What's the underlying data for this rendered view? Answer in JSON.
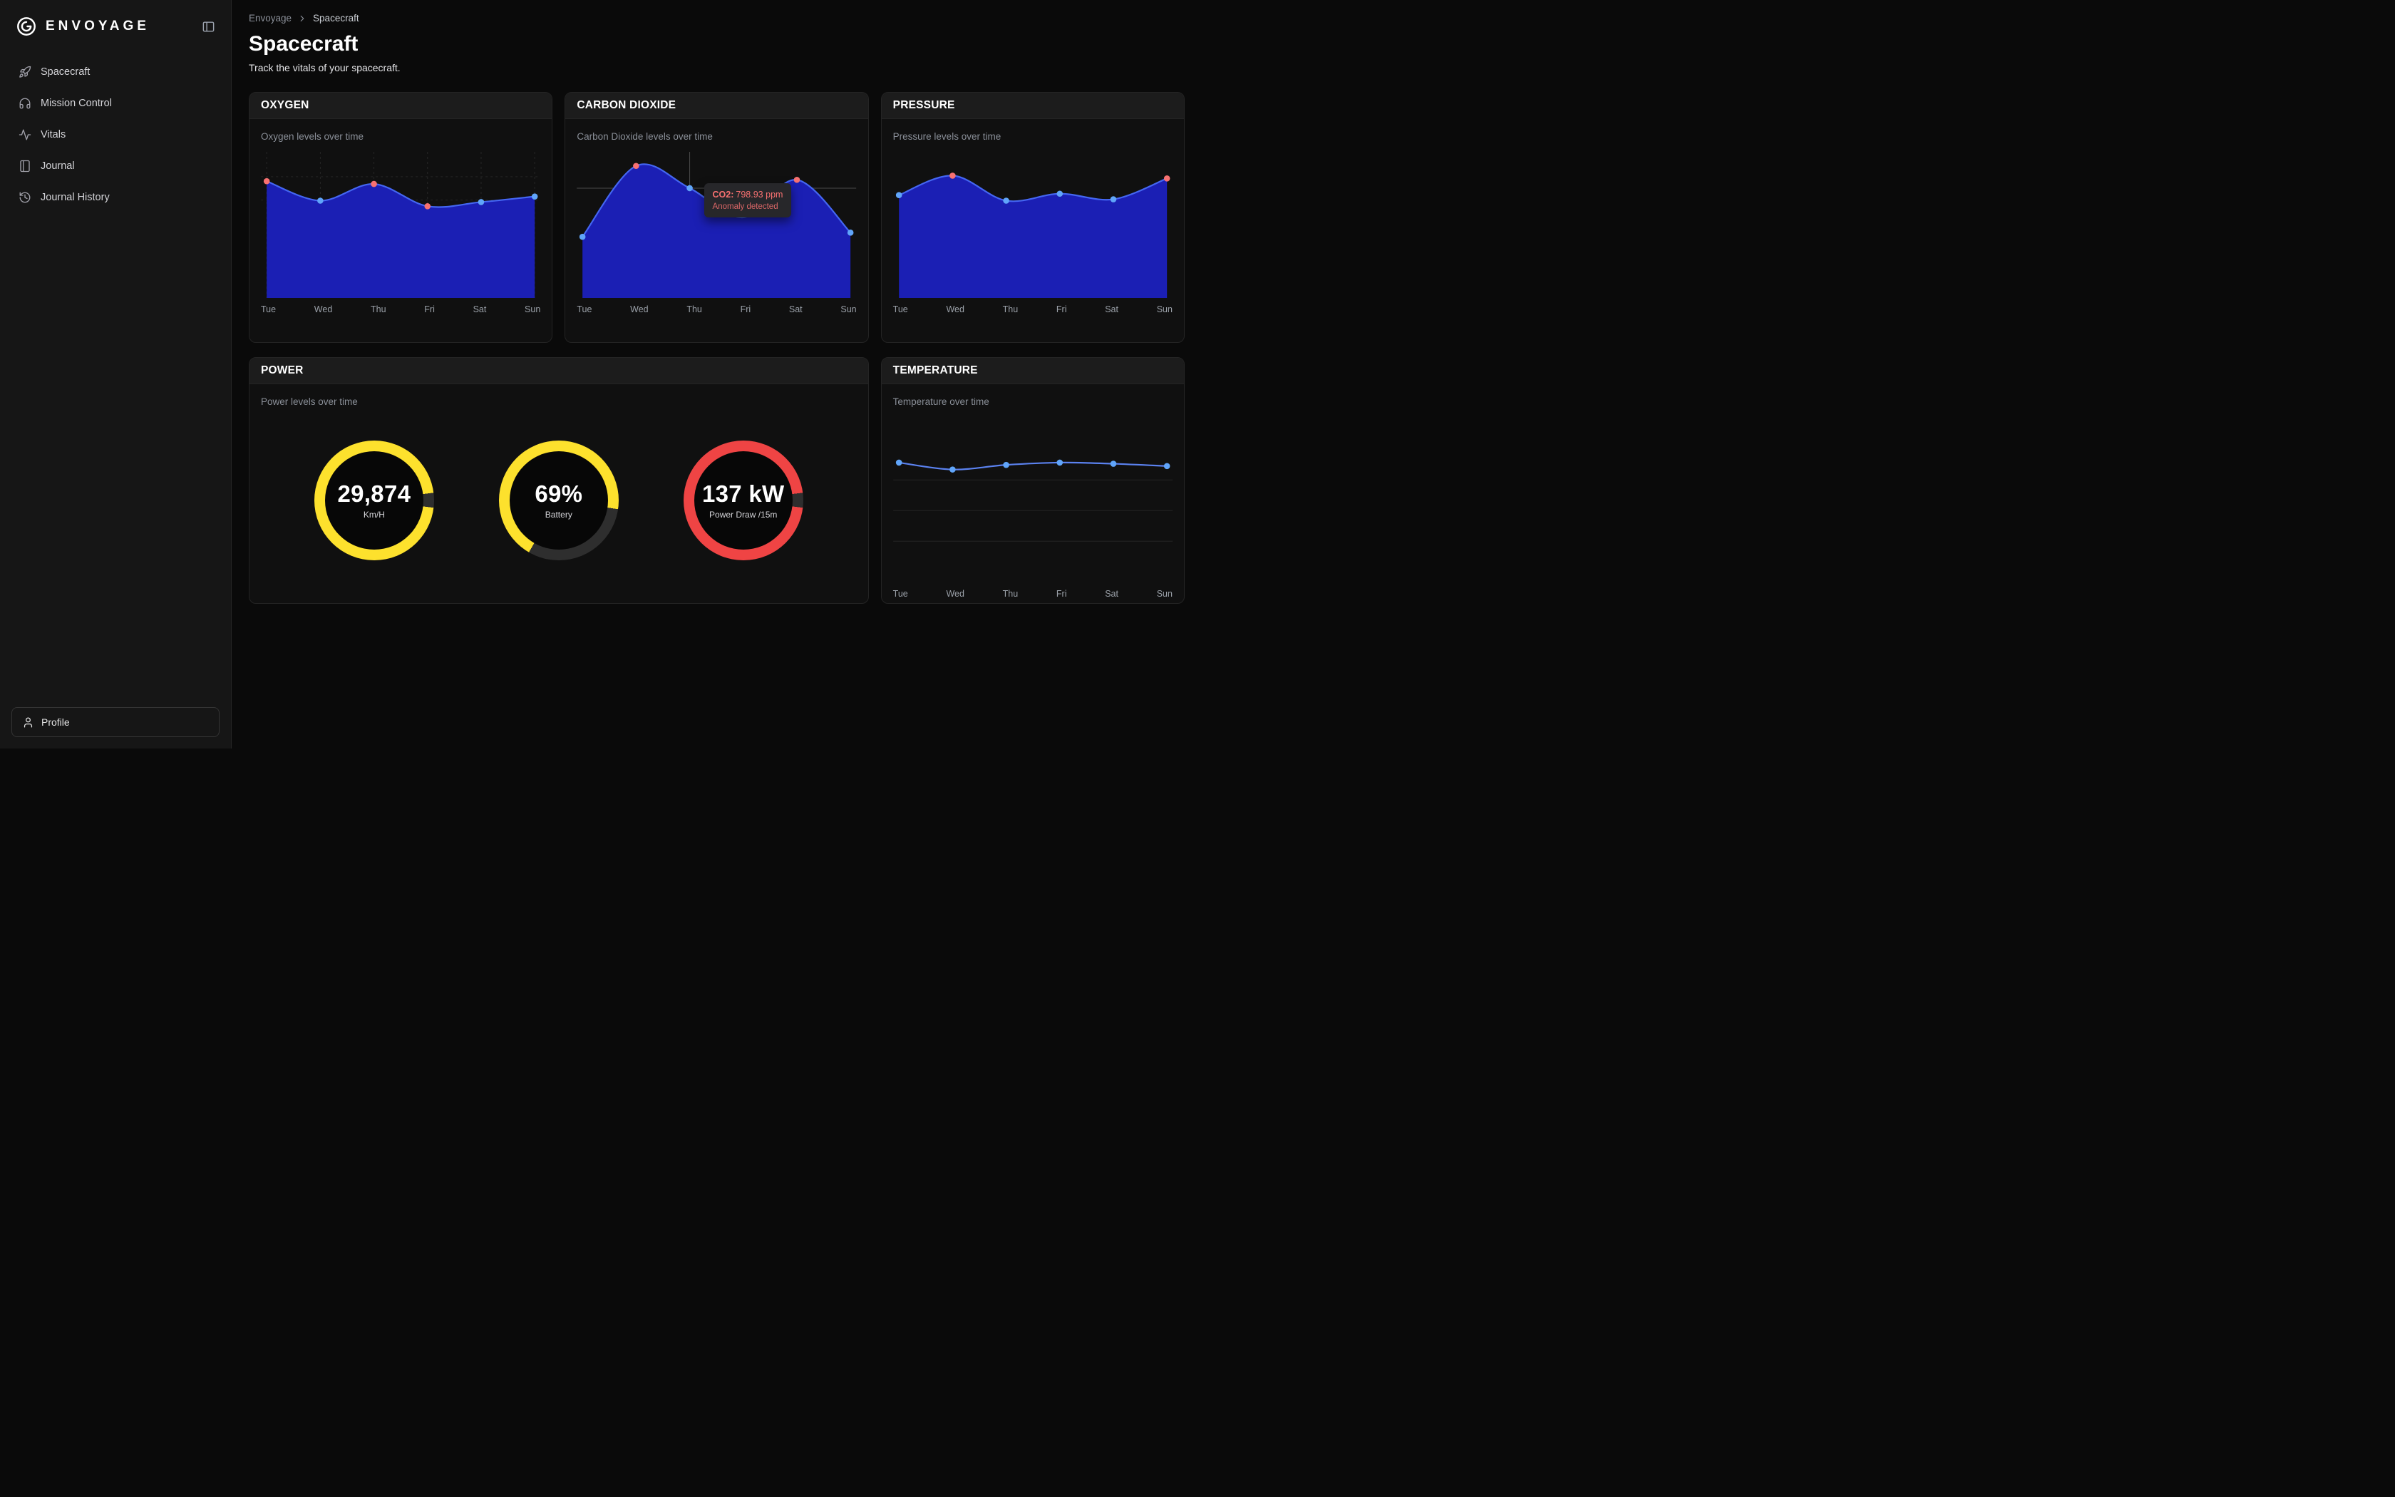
{
  "app": {
    "wordmark": "ENVOYAGE"
  },
  "sidebar": {
    "items": [
      {
        "label": "Spacecraft"
      },
      {
        "label": "Mission Control"
      },
      {
        "label": "Vitals"
      },
      {
        "label": "Journal"
      },
      {
        "label": "Journal History"
      }
    ],
    "profile_label": "Profile"
  },
  "breadcrumb": {
    "root": "Envoyage",
    "current": "Spacecraft"
  },
  "page": {
    "title": "Spacecraft",
    "subtitle": "Track the vitals of your spacecraft."
  },
  "power": {
    "title": "POWER",
    "subtitle": "Power levels over time",
    "gauges": [
      {
        "value": "29,874",
        "label": "Km/H",
        "color": "#fde12d",
        "track": "#2e2e2e",
        "percent": 96,
        "start_deg": 97
      },
      {
        "value": "69%",
        "label": "Battery",
        "color": "#fde12d",
        "track": "#2e2e2e",
        "percent": 69,
        "start_deg": 210
      },
      {
        "value": "137 kW",
        "label": "Power Draw /15m",
        "color": "#ef4444",
        "track": "#2e2e2e",
        "percent": 96,
        "start_deg": 97
      }
    ]
  },
  "chart_data": [
    {
      "id": "oxygen",
      "type": "area",
      "title": "OXYGEN",
      "subtitle": "Oxygen levels over time",
      "categories": [
        "Tue",
        "Wed",
        "Thu",
        "Fri",
        "Sat",
        "Sun"
      ],
      "values": [
        84,
        70,
        82,
        66,
        69,
        73
      ],
      "point_colors": [
        "red",
        "blue",
        "red",
        "red",
        "blue",
        "blue"
      ],
      "ylim": [
        0,
        100
      ],
      "colors": {
        "fill": "#1b1fb4",
        "line": "#4466f2"
      },
      "grid": {
        "vlines": true,
        "hlines": [
          0.17,
          0.33
        ],
        "dashed": true
      }
    },
    {
      "id": "co2",
      "type": "area",
      "title": "CARBON DIOXIDE",
      "subtitle": "Carbon Dioxide levels over time",
      "categories": [
        "Tue",
        "Wed",
        "Thu",
        "Fri",
        "Sat",
        "Sun"
      ],
      "values": [
        44,
        95,
        79,
        58,
        85,
        47
      ],
      "point_colors": [
        "blue",
        "red",
        "blue",
        "none",
        "red",
        "blue"
      ],
      "ylim": [
        0,
        100
      ],
      "colors": {
        "fill": "#1b1fb4",
        "line": "#4466f2"
      },
      "crosshair_index": 2,
      "tooltip": {
        "label": "CO2:",
        "value": "798.93 ppm",
        "note": "Anomaly detected"
      }
    },
    {
      "id": "pressure",
      "type": "area",
      "title": "PRESSURE",
      "subtitle": "Pressure levels over time",
      "categories": [
        "Tue",
        "Wed",
        "Thu",
        "Fri",
        "Sat",
        "Sun"
      ],
      "values": [
        74,
        88,
        70,
        75,
        71,
        86
      ],
      "point_colors": [
        "blue",
        "red",
        "blue",
        "blue",
        "blue",
        "red"
      ],
      "ylim": [
        0,
        100
      ],
      "colors": {
        "fill": "#1b1fb4",
        "line": "#4466f2"
      }
    },
    {
      "id": "temperature",
      "type": "line",
      "title": "TEMPERATURE",
      "subtitle": "Temperature over time",
      "categories": [
        "Tue",
        "Wed",
        "Thu",
        "Fri",
        "Sat",
        "Sun"
      ],
      "values": [
        84,
        78,
        82,
        84,
        83,
        81
      ],
      "point_colors": [
        "blue",
        "blue",
        "blue",
        "blue",
        "blue",
        "blue"
      ],
      "ylim": [
        0,
        100
      ],
      "colors": {
        "line": "#5b82f0"
      },
      "grid": {
        "hlines": [
          0.35,
          0.6,
          0.85
        ],
        "dashed": false
      }
    }
  ]
}
